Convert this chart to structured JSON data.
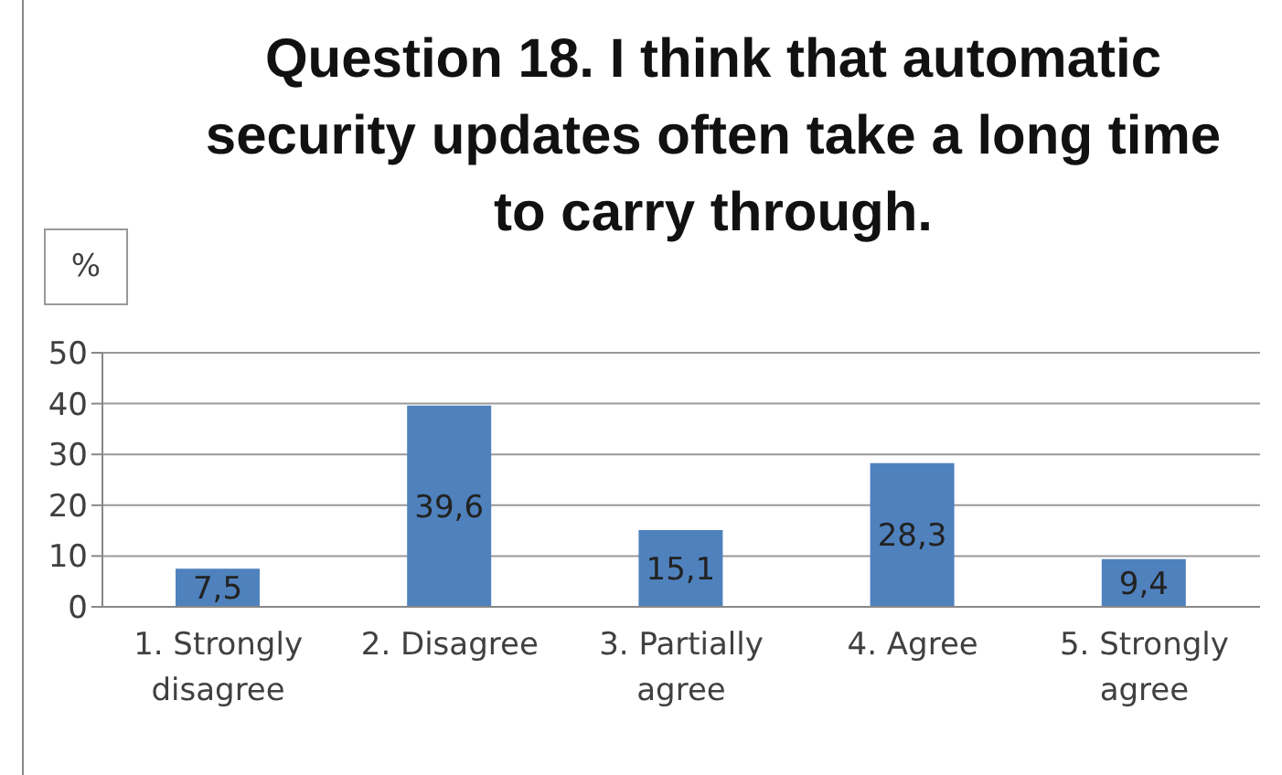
{
  "chart_data": {
    "type": "bar",
    "title": "Question 18. I think that automatic security updates often take a long time to carry through.",
    "ylabel": "%",
    "categories": [
      "1. Strongly disagree",
      "2. Disagree",
      "3. Partially agree",
      "4. Agree",
      "5. Strongly agree"
    ],
    "values": [
      7.5,
      39.6,
      15.1,
      28.3,
      9.4
    ],
    "value_labels": [
      "7,5",
      "39,6",
      "15,1",
      "28,3",
      "9,4"
    ],
    "color": "#4f81bd",
    "ylim": [
      0,
      50
    ],
    "yticks": [
      0,
      10,
      20,
      30,
      40,
      50
    ],
    "grid": "y"
  }
}
